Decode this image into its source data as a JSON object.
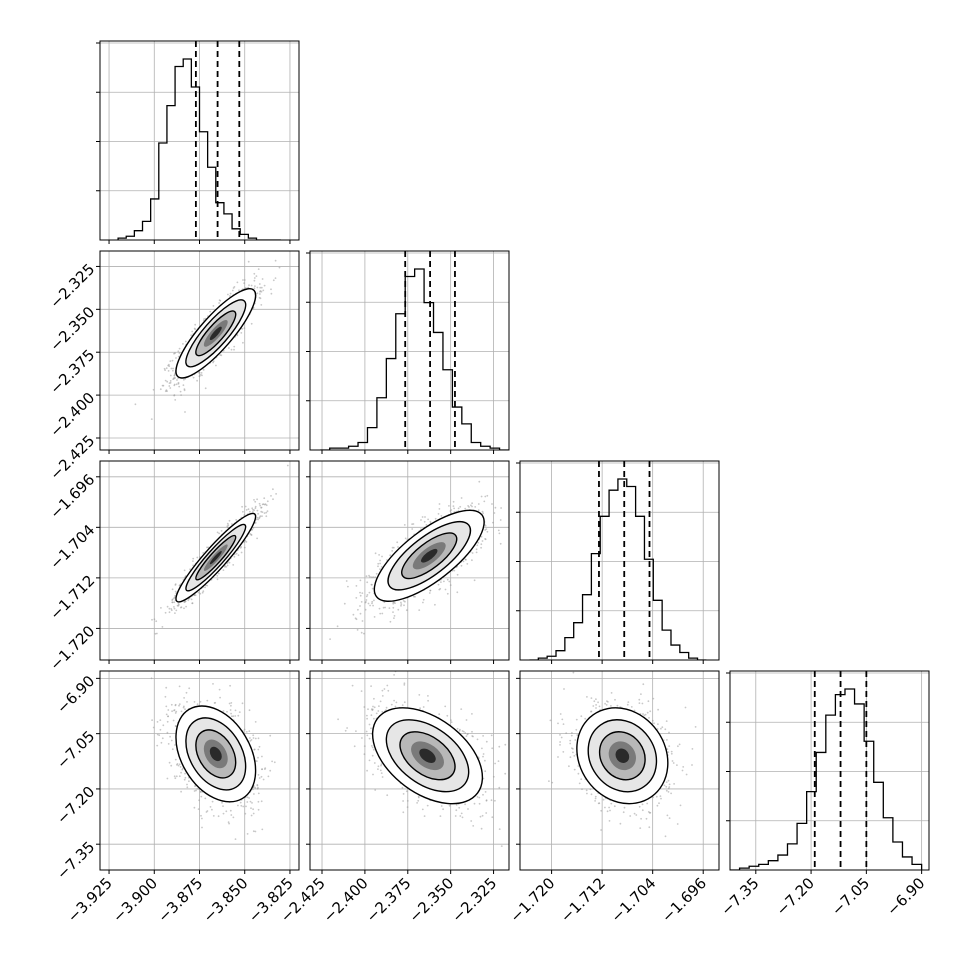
{
  "chart_data": {
    "type": "corner",
    "grid": true,
    "quantile_lines": "dashed",
    "parameters": [
      {
        "range": [
          -3.93,
          -3.82
        ],
        "ticks": [
          -3.925,
          -3.9,
          -3.875,
          -3.85,
          -3.825
        ],
        "tick_labels": [
          "−3.925",
          "−3.900",
          "−3.875",
          "−3.850",
          "−3.825"
        ],
        "quantiles": [
          -3.877,
          -3.865,
          -3.853
        ],
        "hist_edges": [
          -3.92,
          -3.9155,
          -3.911,
          -3.9065,
          -3.902,
          -3.8975,
          -3.893,
          -3.8885,
          -3.884,
          -3.8795,
          -3.875,
          -3.8705,
          -3.866,
          -3.8615,
          -3.857,
          -3.8525,
          -3.848,
          -3.8435,
          -3.839,
          -3.8345,
          -3.83
        ],
        "hist_counts": [
          1,
          2,
          5,
          10,
          22,
          52,
          72,
          93,
          97,
          82,
          58,
          39,
          20,
          14,
          6,
          3,
          1,
          0,
          0,
          0
        ]
      },
      {
        "range": [
          -2.432,
          -2.316
        ],
        "ticks": [
          -2.425,
          -2.4,
          -2.375,
          -2.35,
          -2.325
        ],
        "tick_labels": [
          "−2.425",
          "−2.400",
          "−2.375",
          "−2.350",
          "−2.325"
        ],
        "quantiles": [
          -2.3765,
          -2.362,
          -2.3475
        ],
        "hist_edges": [
          -2.426,
          -2.4205,
          -2.415,
          -2.4095,
          -2.404,
          -2.3985,
          -2.393,
          -2.3875,
          -2.382,
          -2.3765,
          -2.371,
          -2.3655,
          -2.36,
          -2.3545,
          -2.349,
          -2.3435,
          -2.338,
          -2.3325,
          -2.327,
          -2.3215,
          -2.316
        ],
        "hist_counts": [
          0,
          1,
          1,
          2,
          4,
          12,
          28,
          49,
          73,
          93,
          97,
          79,
          63,
          43,
          23,
          14,
          4,
          2,
          1,
          0
        ]
      },
      {
        "range": [
          -1.725,
          -1.6935
        ],
        "ticks": [
          -1.72,
          -1.712,
          -1.704,
          -1.696
        ],
        "tick_labels": [
          "−1.720",
          "−1.712",
          "−1.704",
          "−1.696"
        ],
        "quantiles": [
          -1.7125,
          -1.7085,
          -1.7045
        ],
        "hist_edges": [
          -1.7235,
          -1.7221,
          -1.7207,
          -1.7193,
          -1.7179,
          -1.7165,
          -1.7151,
          -1.7137,
          -1.7123,
          -1.7109,
          -1.7095,
          -1.7081,
          -1.7067,
          -1.7053,
          -1.7039,
          -1.7025,
          -1.7011,
          -1.6997,
          -1.6983,
          -1.6969,
          -1.6955
        ],
        "hist_counts": [
          0,
          1,
          2,
          5,
          12,
          20,
          35,
          57,
          77,
          91,
          97,
          93,
          77,
          54,
          32,
          16,
          8,
          4,
          1,
          0
        ]
      },
      {
        "range": [
          -7.42,
          -6.88
        ],
        "ticks": [
          -7.35,
          -7.2,
          -7.05,
          -6.9
        ],
        "tick_labels": [
          "−7.35",
          "−7.20",
          "−7.05",
          "−6.90"
        ],
        "quantiles": [
          -7.19,
          -7.12,
          -7.05
        ],
        "hist_edges": [
          -7.42,
          -7.394,
          -7.368,
          -7.342,
          -7.316,
          -7.29,
          -7.264,
          -7.238,
          -7.212,
          -7.186,
          -7.16,
          -7.134,
          -7.108,
          -7.082,
          -7.056,
          -7.03,
          -7.004,
          -6.978,
          -6.952,
          -6.926,
          -6.9
        ],
        "hist_counts": [
          0,
          1,
          2,
          3,
          5,
          8,
          14,
          25,
          42,
          63,
          83,
          94,
          97,
          89,
          69,
          47,
          28,
          15,
          7,
          3
        ]
      }
    ],
    "pairs": [
      {
        "x": 0,
        "y": 1,
        "center": [
          -3.866,
          -2.364
        ],
        "sd": [
          0.011,
          0.013
        ],
        "correlation": 0.85
      },
      {
        "x": 0,
        "y": 2,
        "center": [
          -3.866,
          -1.7088
        ],
        "sd": [
          0.011,
          0.0035
        ],
        "correlation": 0.93
      },
      {
        "x": 1,
        "y": 2,
        "center": [
          -2.3625,
          -1.7085
        ],
        "sd": [
          0.016,
          0.0036
        ],
        "correlation": 0.74
      },
      {
        "x": 0,
        "y": 3,
        "center": [
          -3.866,
          -7.105
        ],
        "sd": [
          0.011,
          0.065
        ],
        "correlation": -0.35
      },
      {
        "x": 1,
        "y": 3,
        "center": [
          -2.3635,
          -7.11
        ],
        "sd": [
          0.016,
          0.065
        ],
        "correlation": -0.45
      },
      {
        "x": 2,
        "y": 3,
        "center": [
          -1.7088,
          -7.11
        ],
        "sd": [
          0.0036,
          0.065
        ],
        "correlation": -0.15
      }
    ]
  }
}
